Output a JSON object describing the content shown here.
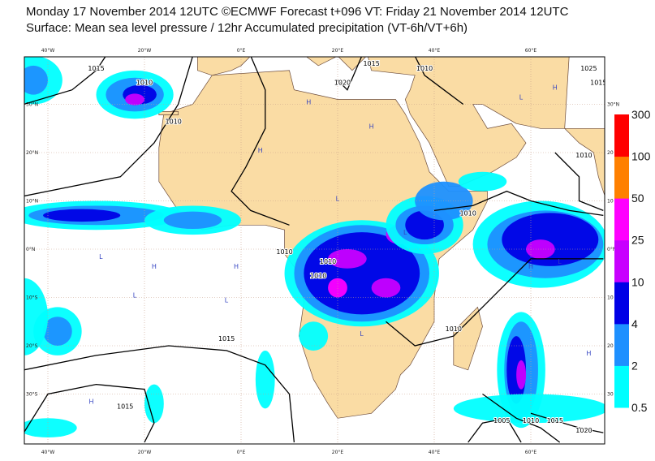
{
  "header": {
    "line1": "Monday 17 November 2014 12UTC ©ECMWF Forecast t+096 VT: Friday 21 November 2014 12UTC",
    "line2": "Surface: Mean sea level pressure / 12hr Accumulated precipitation (VT-6h/VT+6h)"
  },
  "map": {
    "lon_labels": [
      "40°W",
      "20°W",
      "0°E",
      "20°E",
      "40°E",
      "60°E"
    ],
    "lat_labels": [
      "30°N",
      "20°N",
      "10°N",
      "0°N",
      "10°S",
      "20°S",
      "30°S"
    ],
    "lat_labels_right": [
      "30°N",
      "20",
      "10",
      "0°N",
      "10",
      "20",
      "30"
    ],
    "isobar_labels": [
      "1015",
      "1010",
      "1010",
      "1015",
      "1020",
      "1015",
      "1010",
      "1025",
      "1015",
      "1010",
      "1010",
      "1010",
      "1010",
      "1010",
      "1010",
      "1015",
      "1005",
      "1010",
      "1015",
      "1020"
    ],
    "pressure_centers": [
      "H",
      "H",
      "H",
      "H",
      "H",
      "L",
      "L",
      "L",
      "L",
      "L",
      "H",
      "H",
      "L",
      "L",
      "H",
      "H",
      "L"
    ]
  },
  "legend": {
    "levels": [
      "0.5",
      "2",
      "4",
      "10",
      "25",
      "50",
      "100",
      "300"
    ],
    "colors": [
      "#00ffff",
      "#1e90ff",
      "#0000e6",
      "#c800ff",
      "#ff00ff",
      "#ff8000",
      "#ff0000"
    ]
  }
}
